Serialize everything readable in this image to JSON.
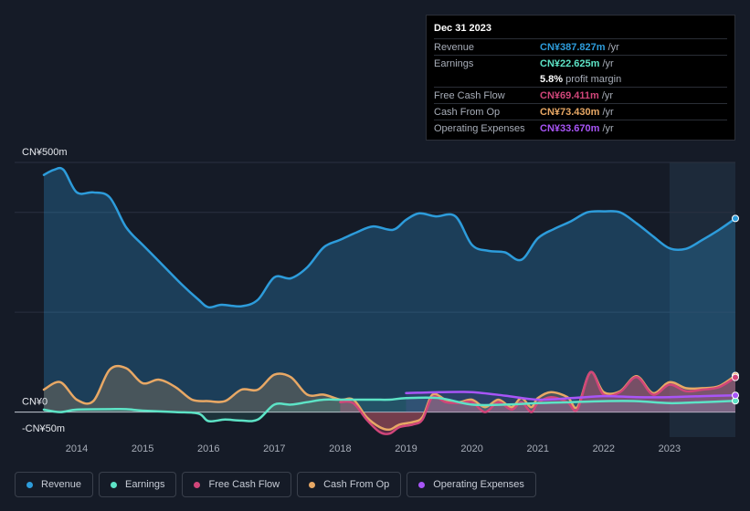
{
  "chart_data": {
    "type": "area",
    "title": "",
    "y_axis_labels": [
      "CN¥500m",
      "CN¥0",
      "-CN¥50m"
    ],
    "ylim": [
      -50,
      500
    ],
    "xlim": [
      2013.5,
      2024.0
    ],
    "x_ticks": [
      "2014",
      "2015",
      "2016",
      "2017",
      "2018",
      "2019",
      "2020",
      "2021",
      "2022",
      "2023"
    ],
    "x_tick_values": [
      2014,
      2015,
      2016,
      2017,
      2018,
      2019,
      2020,
      2021,
      2022,
      2023
    ],
    "forecast_start": 2023.0,
    "series": [
      {
        "name": "Revenue",
        "color": "#2d9cdb",
        "points": [
          [
            2013.5,
            475
          ],
          [
            2013.65,
            485
          ],
          [
            2013.8,
            485
          ],
          [
            2014.0,
            440
          ],
          [
            2014.25,
            440
          ],
          [
            2014.5,
            430
          ],
          [
            2014.75,
            370
          ],
          [
            2015.0,
            335
          ],
          [
            2015.3,
            295
          ],
          [
            2015.6,
            255
          ],
          [
            2015.85,
            225
          ],
          [
            2016.0,
            210
          ],
          [
            2016.2,
            215
          ],
          [
            2016.5,
            212
          ],
          [
            2016.75,
            225
          ],
          [
            2017.0,
            270
          ],
          [
            2017.25,
            268
          ],
          [
            2017.5,
            290
          ],
          [
            2017.75,
            330
          ],
          [
            2018.0,
            345
          ],
          [
            2018.25,
            360
          ],
          [
            2018.5,
            372
          ],
          [
            2018.8,
            365
          ],
          [
            2019.0,
            385
          ],
          [
            2019.2,
            398
          ],
          [
            2019.45,
            392
          ],
          [
            2019.75,
            392
          ],
          [
            2020.0,
            335
          ],
          [
            2020.25,
            323
          ],
          [
            2020.5,
            320
          ],
          [
            2020.75,
            305
          ],
          [
            2021.0,
            348
          ],
          [
            2021.25,
            367
          ],
          [
            2021.5,
            382
          ],
          [
            2021.75,
            400
          ],
          [
            2022.0,
            402
          ],
          [
            2022.25,
            400
          ],
          [
            2022.5,
            378
          ],
          [
            2022.75,
            352
          ],
          [
            2023.0,
            328
          ],
          [
            2023.25,
            327
          ],
          [
            2023.5,
            345
          ],
          [
            2023.75,
            365
          ],
          [
            2024.0,
            387.827
          ]
        ]
      },
      {
        "name": "Earnings",
        "color": "#5de3c6",
        "points": [
          [
            2013.5,
            5
          ],
          [
            2013.75,
            0
          ],
          [
            2014.0,
            5
          ],
          [
            2014.5,
            6
          ],
          [
            2014.75,
            6
          ],
          [
            2015.0,
            3
          ],
          [
            2015.5,
            0
          ],
          [
            2015.85,
            -3
          ],
          [
            2016.0,
            -18
          ],
          [
            2016.25,
            -15
          ],
          [
            2016.5,
            -17
          ],
          [
            2016.75,
            -15
          ],
          [
            2017.0,
            15
          ],
          [
            2017.25,
            15
          ],
          [
            2017.5,
            20
          ],
          [
            2017.75,
            25
          ],
          [
            2018.0,
            25
          ],
          [
            2018.5,
            25
          ],
          [
            2018.75,
            25
          ],
          [
            2019.0,
            28
          ],
          [
            2019.5,
            28
          ],
          [
            2020.0,
            15
          ],
          [
            2020.5,
            15
          ],
          [
            2021.0,
            18
          ],
          [
            2021.5,
            20
          ],
          [
            2022.0,
            22
          ],
          [
            2022.5,
            22
          ],
          [
            2023.0,
            18
          ],
          [
            2023.5,
            20
          ],
          [
            2024.0,
            22.625
          ]
        ]
      },
      {
        "name": "Free Cash Flow",
        "color": "#d1467a",
        "points": [
          [
            2018.0,
            20
          ],
          [
            2018.2,
            18
          ],
          [
            2018.4,
            -15
          ],
          [
            2018.6,
            -40
          ],
          [
            2018.75,
            -43
          ],
          [
            2018.9,
            -30
          ],
          [
            2019.1,
            -25
          ],
          [
            2019.25,
            -15
          ],
          [
            2019.4,
            30
          ],
          [
            2019.6,
            20
          ],
          [
            2019.8,
            18
          ],
          [
            2020.0,
            20
          ],
          [
            2020.2,
            0
          ],
          [
            2020.4,
            20
          ],
          [
            2020.6,
            5
          ],
          [
            2020.75,
            20
          ],
          [
            2020.9,
            0
          ],
          [
            2021.0,
            18
          ],
          [
            2021.2,
            30
          ],
          [
            2021.45,
            20
          ],
          [
            2021.6,
            5
          ],
          [
            2021.8,
            80
          ],
          [
            2022.0,
            35
          ],
          [
            2022.25,
            40
          ],
          [
            2022.5,
            70
          ],
          [
            2022.75,
            35
          ],
          [
            2023.0,
            55
          ],
          [
            2023.25,
            42
          ],
          [
            2023.5,
            45
          ],
          [
            2023.75,
            50
          ],
          [
            2024.0,
            69.411
          ]
        ]
      },
      {
        "name": "Cash From Op",
        "color": "#e8a865",
        "points": [
          [
            2013.5,
            45
          ],
          [
            2013.75,
            60
          ],
          [
            2014.0,
            25
          ],
          [
            2014.25,
            22
          ],
          [
            2014.5,
            85
          ],
          [
            2014.75,
            88
          ],
          [
            2015.0,
            58
          ],
          [
            2015.25,
            65
          ],
          [
            2015.5,
            50
          ],
          [
            2015.75,
            25
          ],
          [
            2016.0,
            22
          ],
          [
            2016.25,
            22
          ],
          [
            2016.5,
            45
          ],
          [
            2016.75,
            45
          ],
          [
            2017.0,
            75
          ],
          [
            2017.25,
            70
          ],
          [
            2017.5,
            35
          ],
          [
            2017.75,
            35
          ],
          [
            2018.0,
            25
          ],
          [
            2018.2,
            25
          ],
          [
            2018.4,
            -10
          ],
          [
            2018.6,
            -30
          ],
          [
            2018.75,
            -35
          ],
          [
            2018.9,
            -25
          ],
          [
            2019.1,
            -20
          ],
          [
            2019.25,
            -10
          ],
          [
            2019.4,
            35
          ],
          [
            2019.6,
            25
          ],
          [
            2019.8,
            20
          ],
          [
            2020.0,
            25
          ],
          [
            2020.2,
            10
          ],
          [
            2020.4,
            25
          ],
          [
            2020.6,
            10
          ],
          [
            2020.75,
            28
          ],
          [
            2020.9,
            10
          ],
          [
            2021.0,
            28
          ],
          [
            2021.2,
            40
          ],
          [
            2021.45,
            30
          ],
          [
            2021.6,
            10
          ],
          [
            2021.8,
            80
          ],
          [
            2022.0,
            40
          ],
          [
            2022.25,
            42
          ],
          [
            2022.5,
            72
          ],
          [
            2022.75,
            38
          ],
          [
            2023.0,
            60
          ],
          [
            2023.25,
            48
          ],
          [
            2023.5,
            48
          ],
          [
            2023.75,
            52
          ],
          [
            2024.0,
            73.43
          ]
        ]
      },
      {
        "name": "Operating Expenses",
        "color": "#a855f7",
        "points": [
          [
            2019.0,
            38
          ],
          [
            2019.5,
            40
          ],
          [
            2020.0,
            40
          ],
          [
            2020.5,
            33
          ],
          [
            2021.0,
            25
          ],
          [
            2021.5,
            28
          ],
          [
            2022.0,
            32
          ],
          [
            2022.5,
            30
          ],
          [
            2023.0,
            30
          ],
          [
            2023.5,
            32
          ],
          [
            2024.0,
            33.67
          ]
        ]
      }
    ]
  },
  "tooltip": {
    "date": "Dec 31 2023",
    "rows": [
      {
        "label": "Revenue",
        "value": "CN¥387.827m",
        "unit": "/yr",
        "color": "#2d9cdb"
      },
      {
        "label": "Earnings",
        "value": "CN¥22.625m",
        "unit": "/yr",
        "color": "#5de3c6"
      },
      {
        "label": "",
        "value": "5.8%",
        "unit": "profit margin",
        "color": "#ffffff"
      },
      {
        "label": "Free Cash Flow",
        "value": "CN¥69.411m",
        "unit": "/yr",
        "color": "#d1467a"
      },
      {
        "label": "Cash From Op",
        "value": "CN¥73.430m",
        "unit": "/yr",
        "color": "#e8a865"
      },
      {
        "label": "Operating Expenses",
        "value": "CN¥33.670m",
        "unit": "/yr",
        "color": "#a855f7"
      }
    ]
  },
  "legend": [
    {
      "label": "Revenue",
      "color": "#2d9cdb"
    },
    {
      "label": "Earnings",
      "color": "#5de3c6"
    },
    {
      "label": "Free Cash Flow",
      "color": "#d1467a"
    },
    {
      "label": "Cash From Op",
      "color": "#e8a865"
    },
    {
      "label": "Operating Expenses",
      "color": "#a855f7"
    }
  ]
}
